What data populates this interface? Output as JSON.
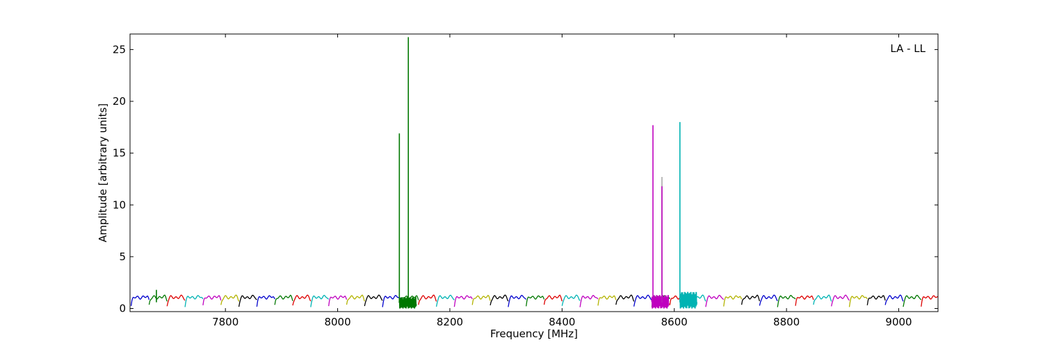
{
  "chart_data": {
    "type": "line",
    "title": "",
    "xlabel": "Frequency [MHz]",
    "ylabel": "Amplitude [arbitrary units]",
    "xlim": [
      7630,
      9070
    ],
    "ylim": [
      -0.3,
      26.5
    ],
    "x_ticks": [
      7800,
      8000,
      8200,
      8400,
      8600,
      8800,
      9000
    ],
    "y_ticks": [
      0,
      5,
      10,
      15,
      20,
      25
    ],
    "grid": false,
    "legend": "none",
    "annotation": "LA - LL",
    "baseline_band": {
      "start": 7632,
      "width": 32,
      "count": 45,
      "dip_value": 0.25,
      "plateau_value": 1.1,
      "color_cycle": [
        "#0000cc",
        "#007700",
        "#dd0000",
        "#00b3b3",
        "#bf00bf",
        "#b3b300",
        "#000000"
      ]
    },
    "spikes": [
      {
        "x": 7677,
        "y": 1.8,
        "color": "#007700"
      },
      {
        "x": 8110,
        "y": 16.9,
        "color": "#007700"
      },
      {
        "x": 8126,
        "y": 26.2,
        "color": "#007700"
      },
      {
        "x": 8562,
        "y": 17.7,
        "color": "#bf00bf"
      },
      {
        "x": 8578,
        "y": 12.7,
        "color": "#aaaaaa"
      },
      {
        "x": 8578,
        "y": 11.8,
        "color": "#bf00bf"
      },
      {
        "x": 8610,
        "y": 18.0,
        "color": "#00b3b3"
      }
    ],
    "highlight_regions": [
      {
        "x_start": 8110,
        "x_end": 8140,
        "color": "#007700",
        "min": 0.0,
        "max": 1.1
      },
      {
        "x_start": 8560,
        "x_end": 8590,
        "color": "#bf00bf",
        "min": 0.0,
        "max": 1.3
      },
      {
        "x_start": 8610,
        "x_end": 8640,
        "color": "#00b3b3",
        "min": 0.0,
        "max": 1.6
      }
    ]
  }
}
